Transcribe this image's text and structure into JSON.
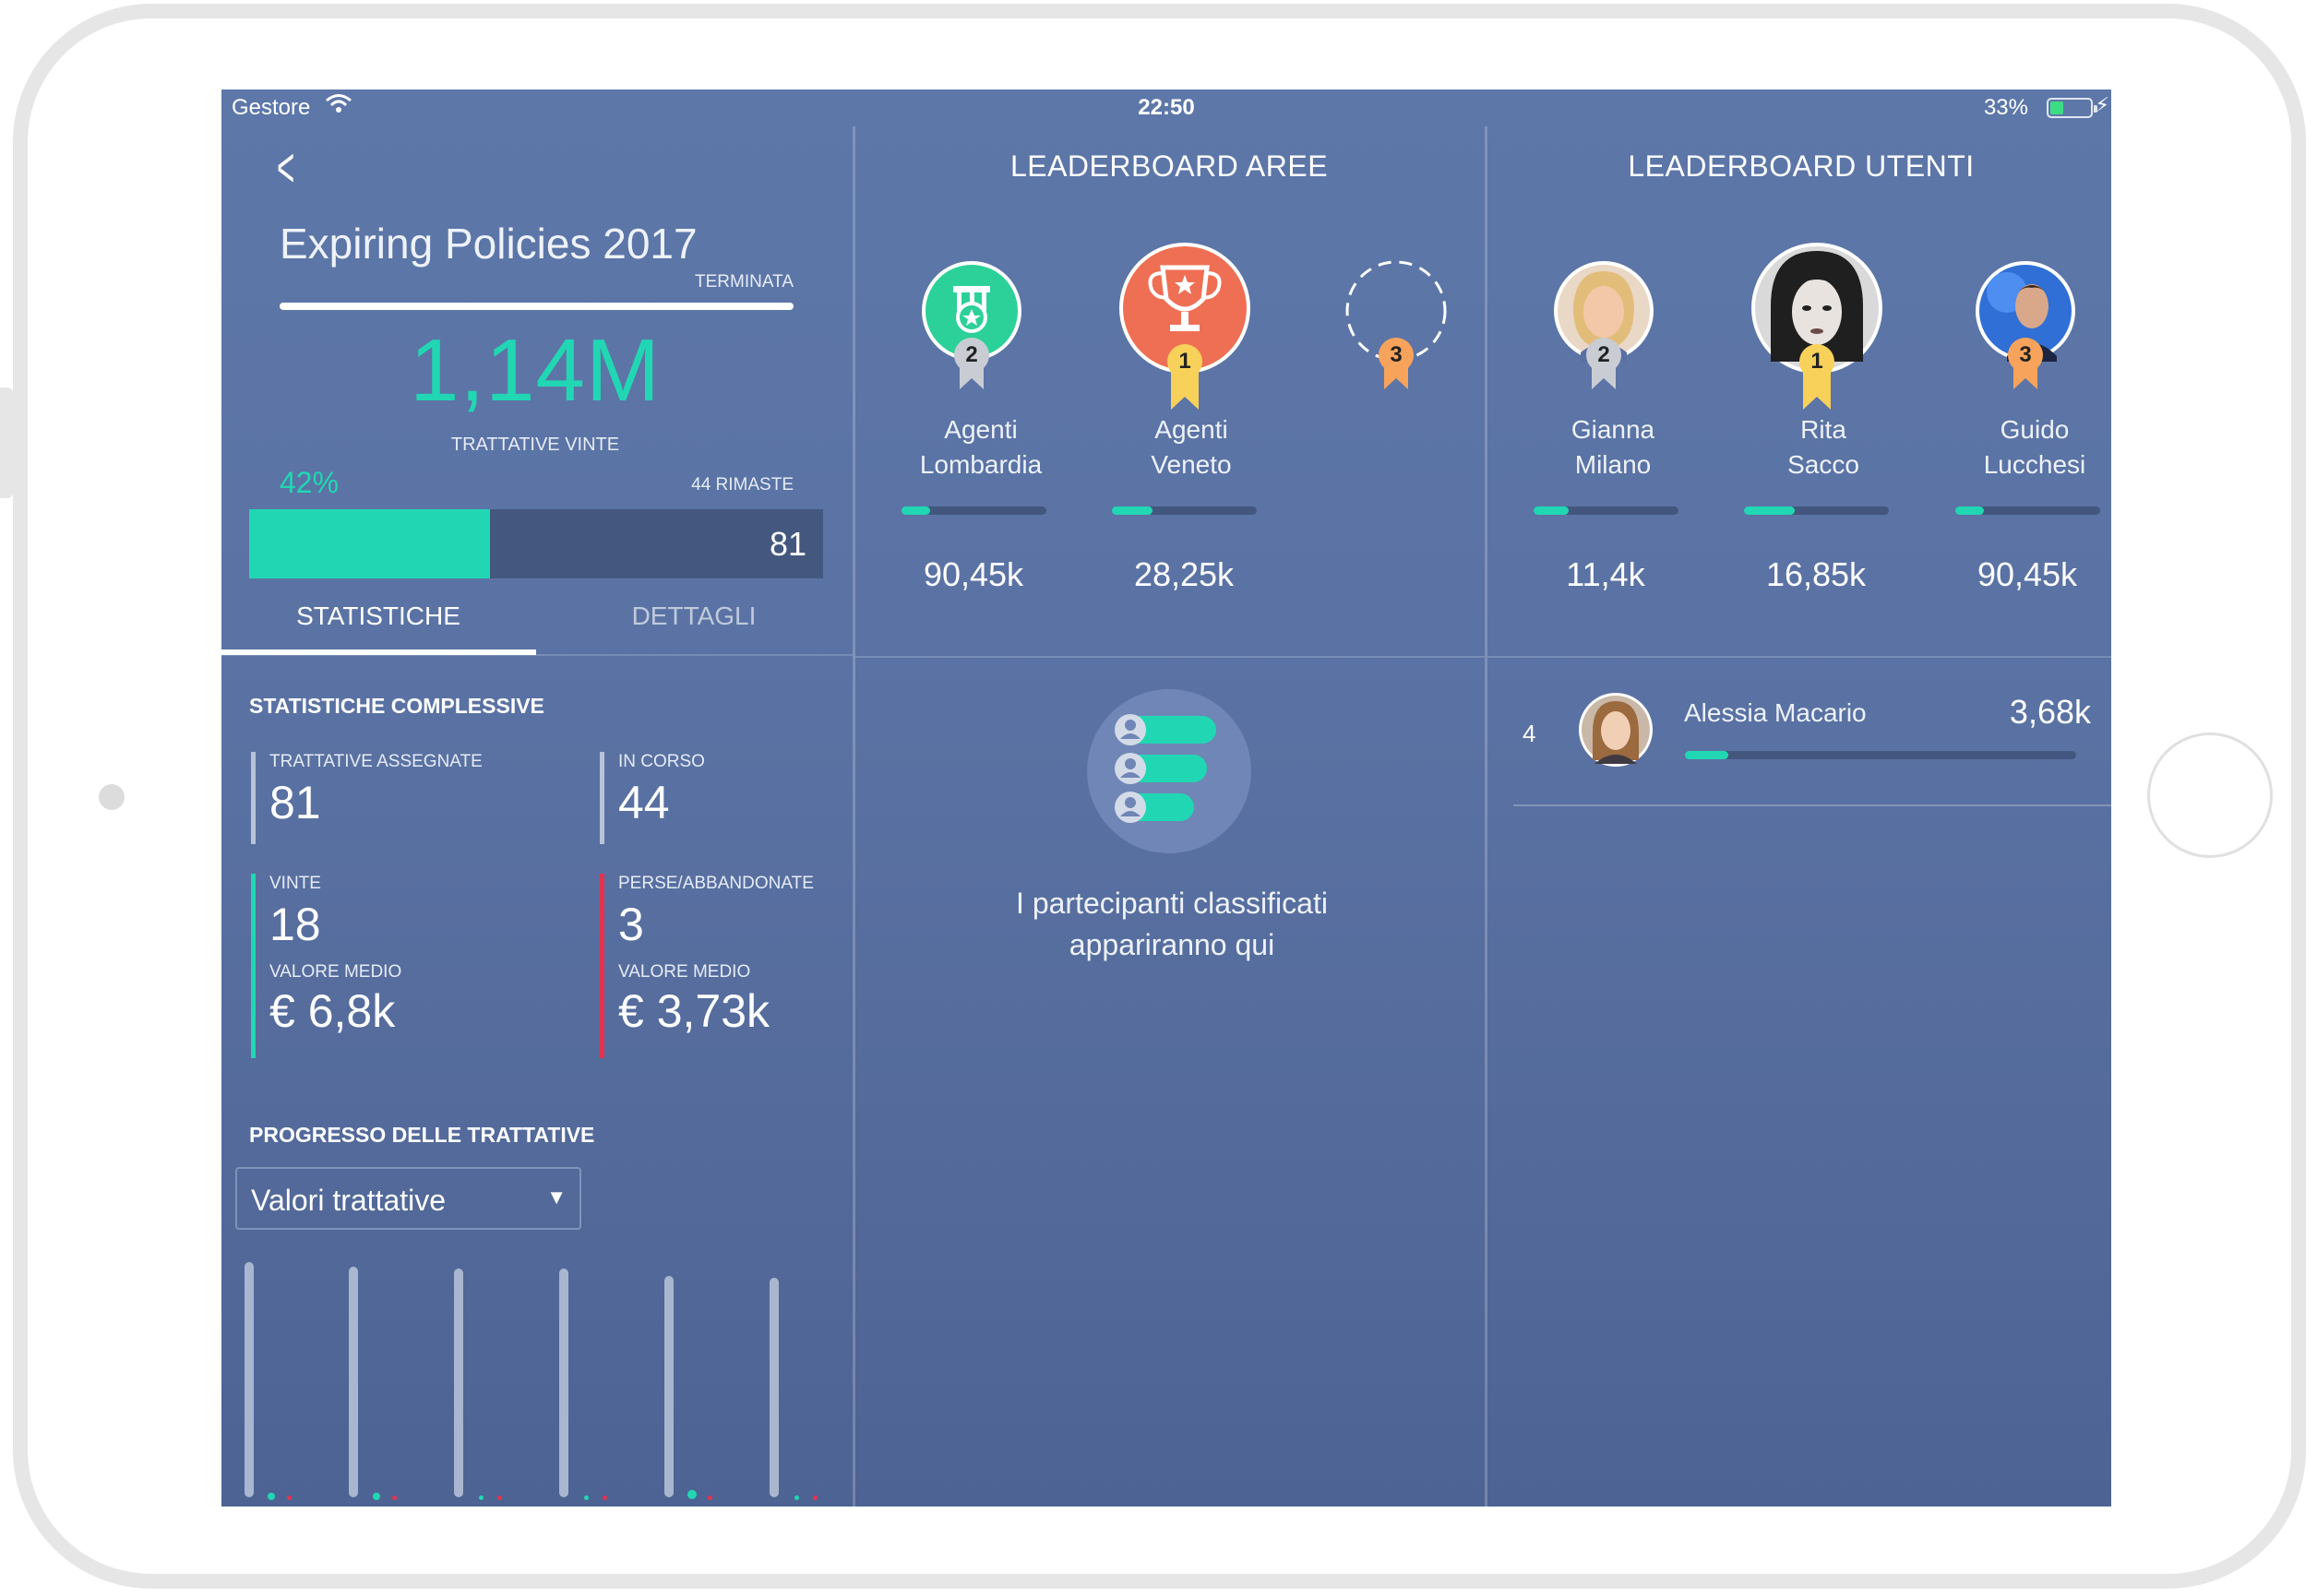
{
  "status_bar": {
    "carrier": "Gestore",
    "time": "22:50",
    "battery": "33%",
    "battery_level": 0.33
  },
  "campaign": {
    "title": "Expiring Policies 2017",
    "status": "TERMINATA",
    "won_value": "1,14M",
    "won_label": "TRATTATIVE VINTE",
    "percent": "42%",
    "percent_value": 0.42,
    "remaining": "44 RIMASTE",
    "total": "81"
  },
  "tabs": {
    "stats": "STATISTICHE",
    "details": "DETTAGLI"
  },
  "stats": {
    "title": "STATISTICHE COMPLESSIVE",
    "assigned_label": "TRATTATIVE ASSEGNATE",
    "assigned_value": "81",
    "in_progress_label": "IN CORSO",
    "in_progress_value": "44",
    "won_label": "VINTE",
    "won_value": "18",
    "won_avg_label": "VALORE MEDIO",
    "won_avg_value": "€ 6,8k",
    "lost_label": "PERSE/ABBANDONATE",
    "lost_value": "3",
    "lost_avg_label": "VALORE MEDIO",
    "lost_avg_value": "€ 3,73k"
  },
  "progress": {
    "title": "PROGRESSO DELLE TRATTATIVE",
    "select_value": "Valori trattative"
  },
  "leaderboard_areas": {
    "title": "LEADERBOARD AREE",
    "entries": [
      {
        "rank": "2",
        "name_line1": "Agenti",
        "name_line2": "Lombardia",
        "value": "90,45k",
        "progress": 0.2
      },
      {
        "rank": "1",
        "name_line1": "Agenti",
        "name_line2": "Veneto",
        "value": "28,25k",
        "progress": 0.28
      },
      {
        "rank": "3"
      }
    ],
    "empty_line1": "I partecipanti classificati",
    "empty_line2": "appariranno qui"
  },
  "leaderboard_users": {
    "title": "LEADERBOARD UTENTI",
    "podium": [
      {
        "rank": "2",
        "name_line1": "Gianna",
        "name_line2": "Milano",
        "value": "11,4k",
        "progress": 0.24
      },
      {
        "rank": "1",
        "name_line1": "Rita",
        "name_line2": "Sacco",
        "value": "16,85k",
        "progress": 0.35
      },
      {
        "rank": "3",
        "name_line1": "Guido",
        "name_line2": "Lucchesi",
        "value": "90,45k",
        "progress": 0.2
      }
    ],
    "list": [
      {
        "rank": "4",
        "name": "Alessia  Macario",
        "value": "3,68k",
        "progress": 0.11
      }
    ]
  },
  "colors": {
    "accent": "#21d7b3",
    "lost": "#e2334f",
    "gold": "#f7d15a",
    "silver": "#c9ccd3",
    "bronze": "#f7a35c"
  }
}
